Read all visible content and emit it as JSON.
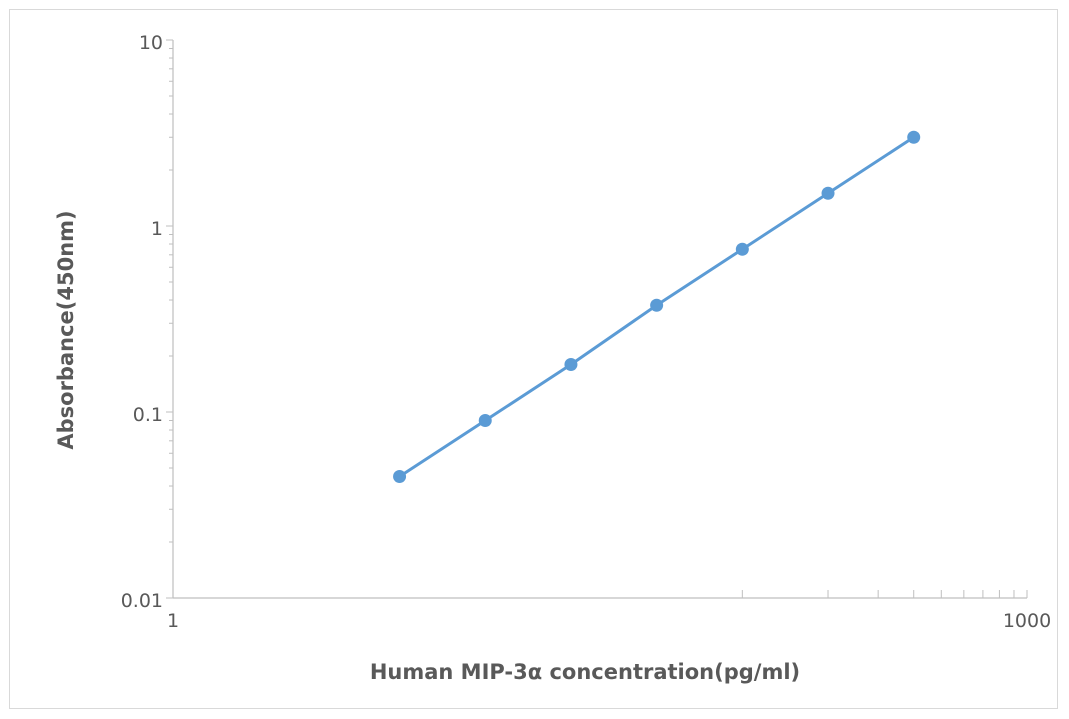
{
  "chart_data": {
    "type": "line",
    "title": "",
    "xlabel": "Human MIP-3α concentration(pg/ml)",
    "ylabel": "Absorbance(450nm)",
    "x_scale": "log",
    "y_scale": "log",
    "xlim": [
      1,
      1000
    ],
    "ylim": [
      0.01,
      10
    ],
    "x_ticks": [
      "1",
      "1000"
    ],
    "y_ticks": [
      "0.01",
      "0.1",
      "1",
      "10"
    ],
    "grid": false,
    "legend": "none",
    "series": [
      {
        "color": "#5b9bd5",
        "marker": "circle",
        "x": [
          6.25,
          12.5,
          25,
          50,
          100,
          200
        ],
        "y": [
          0.045,
          0.09,
          0.18,
          0.375,
          0.75,
          1.5
        ]
      }
    ],
    "final_point": {
      "x": 400,
      "y": 3.0
    }
  }
}
